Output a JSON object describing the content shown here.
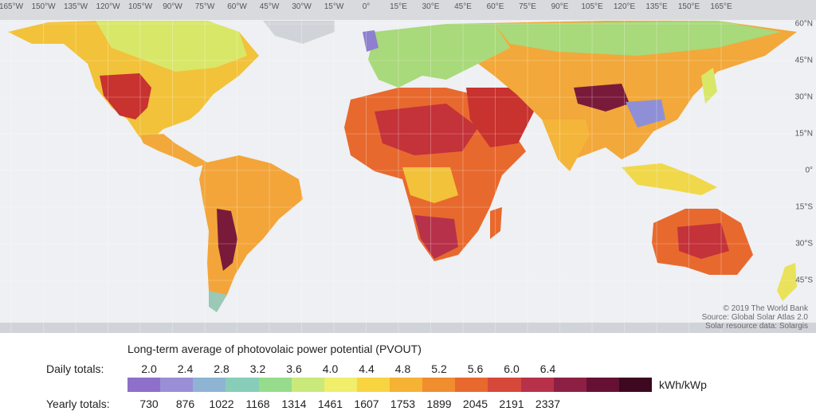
{
  "map": {
    "lon_labels": [
      "165°W",
      "150°W",
      "135°W",
      "120°W",
      "105°W",
      "90°W",
      "75°W",
      "60°W",
      "45°W",
      "30°W",
      "15°W",
      "0°",
      "15°E",
      "30°E",
      "45°E",
      "60°E",
      "75°E",
      "90°E",
      "105°E",
      "120°E",
      "135°E",
      "150°E",
      "165°E"
    ],
    "lat_labels": [
      "60°N",
      "45°N",
      "30°N",
      "15°N",
      "0°",
      "15°S",
      "30°S",
      "45°S"
    ],
    "credits": [
      "© 2019 The World Bank",
      "Source: Global Solar Atlas 2.0",
      "Solar resource data: Solargis"
    ]
  },
  "legend": {
    "title": "Long-term average of photovolaic power potential (PVOUT)",
    "daily_label": "Daily totals:",
    "yearly_label": "Yearly totals:",
    "daily_values": [
      "2.0",
      "2.4",
      "2.8",
      "3.2",
      "3.6",
      "4.0",
      "4.4",
      "4.8",
      "5.2",
      "5.6",
      "6.0",
      "6.4"
    ],
    "yearly_values": [
      "730",
      "876",
      "1022",
      "1168",
      "1314",
      "1461",
      "1607",
      "1753",
      "1899",
      "2045",
      "2191",
      "2337"
    ],
    "unit": "kWh/kWp",
    "colors": [
      "#8e6fc9",
      "#9a8fd6",
      "#8fb3d3",
      "#88cdb8",
      "#97dc8c",
      "#c9e97b",
      "#f0ee6a",
      "#f8d441",
      "#f5b233",
      "#f08d2f",
      "#e8692e",
      "#d6483a",
      "#b8314a",
      "#8e1f44",
      "#661133",
      "#3d0820"
    ]
  }
}
